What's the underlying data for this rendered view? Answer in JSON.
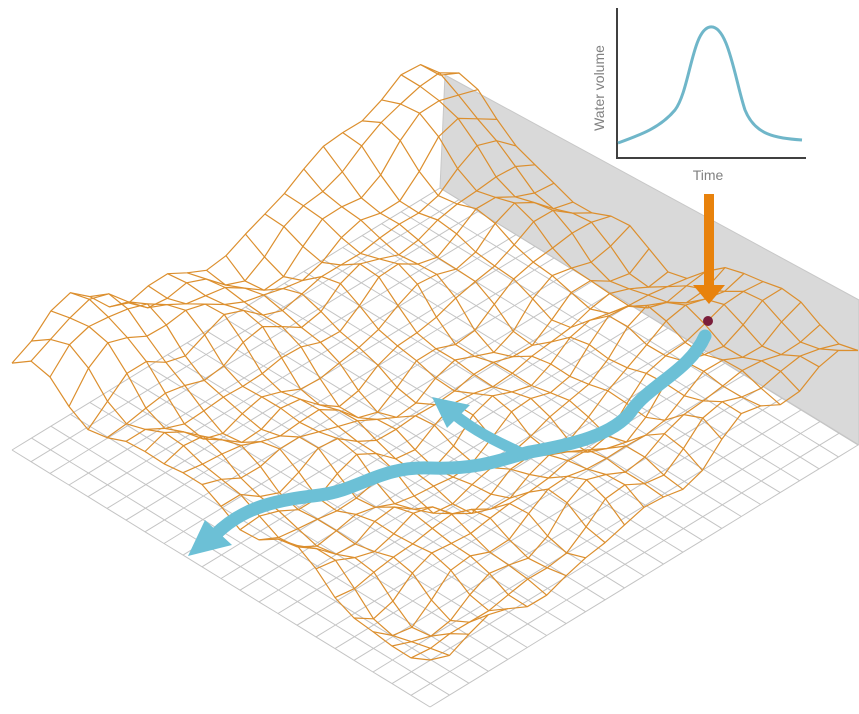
{
  "inset": {
    "y_label": "Water volume",
    "x_label": "Time"
  }
}
